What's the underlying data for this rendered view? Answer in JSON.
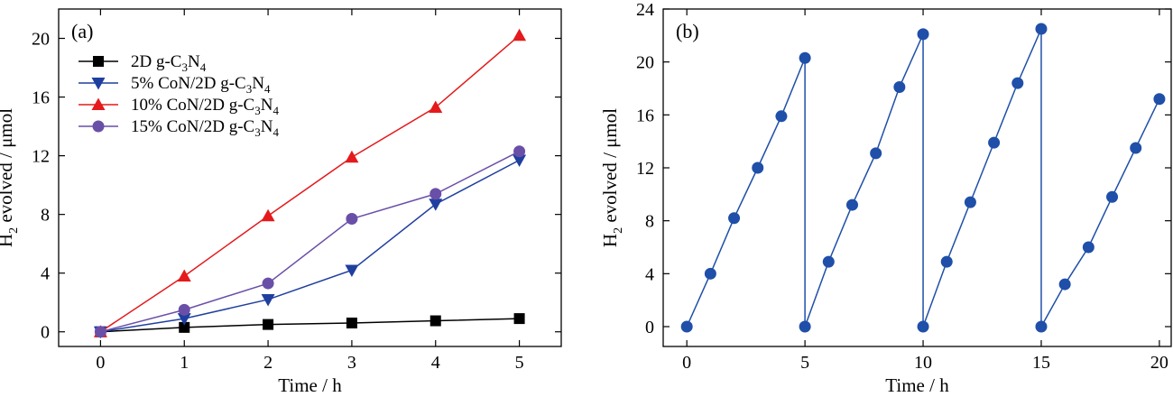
{
  "chart_data": [
    {
      "type": "line",
      "panel_label": "(a)",
      "xlabel": "Time / h",
      "ylabel": "H2 evolved / μmol",
      "ylabel_parts": {
        "before": "H",
        "sub": "2",
        "after": " evolved / μmol"
      },
      "xlim": [
        -0.5,
        5.5
      ],
      "ylim": [
        -1,
        22
      ],
      "xticks": [
        0,
        1,
        2,
        3,
        4,
        5
      ],
      "yticks": [
        0,
        4,
        8,
        12,
        16,
        20
      ],
      "legend_position": "top-left",
      "series": [
        {
          "name": "2D g-C3N4",
          "label_parts": [
            "2D g-C",
            "3",
            "N",
            "4",
            ""
          ],
          "color": "#000000",
          "marker": "square",
          "x": [
            0,
            1,
            2,
            3,
            4,
            5
          ],
          "y": [
            0,
            0.3,
            0.5,
            0.6,
            0.75,
            0.9
          ]
        },
        {
          "name": "5% CoN/2D g-C3N4",
          "label_parts": [
            "5% CoN/2D g-C",
            "3",
            "N",
            "4",
            ""
          ],
          "color": "#1f3f9f",
          "marker": "triangle-down",
          "x": [
            0,
            1,
            2,
            3,
            4,
            5
          ],
          "y": [
            0,
            0.9,
            2.2,
            4.2,
            8.7,
            11.7
          ]
        },
        {
          "name": "10% CoN/2D g-C3N4",
          "label_parts": [
            "10% CoN/2D g-C",
            "3",
            "N",
            "4",
            ""
          ],
          "color": "#e41a1c",
          "marker": "triangle-up",
          "x": [
            0,
            1,
            2,
            3,
            4,
            5
          ],
          "y": [
            0,
            3.8,
            7.9,
            11.9,
            15.3,
            20.2
          ]
        },
        {
          "name": "15% CoN/2D g-C3N4",
          "label_parts": [
            "15% CoN/2D g-C",
            "3",
            "N",
            "4",
            ""
          ],
          "color": "#6a4fa8",
          "marker": "circle",
          "x": [
            0,
            1,
            2,
            3,
            4,
            5
          ],
          "y": [
            0,
            1.5,
            3.3,
            7.7,
            9.4,
            12.3
          ]
        }
      ]
    },
    {
      "type": "line",
      "panel_label": "(b)",
      "xlabel": "Time / h",
      "ylabel": "H2 evolved / μmol",
      "ylabel_parts": {
        "before": "H",
        "sub": "2",
        "after": " evolved / μmol"
      },
      "xlim": [
        -1,
        20.5
      ],
      "ylim": [
        -1.5,
        24
      ],
      "xticks": [
        0,
        5,
        10,
        15,
        20
      ],
      "yticks": [
        0,
        4,
        8,
        12,
        16,
        20,
        24
      ],
      "series": [
        {
          "color": "#1f4fa8",
          "marker": "circle",
          "x": [
            0,
            1,
            2,
            3,
            4,
            5,
            5,
            6,
            7,
            8,
            9,
            10,
            10,
            11,
            12,
            13,
            14,
            15,
            15,
            16,
            17,
            18,
            19,
            20
          ],
          "y": [
            0,
            4.0,
            8.2,
            12.0,
            15.9,
            20.3,
            0,
            4.9,
            9.2,
            13.1,
            18.1,
            22.1,
            0,
            4.9,
            9.4,
            13.9,
            18.4,
            22.5,
            0,
            3.2,
            6.0,
            9.8,
            13.5,
            17.2
          ]
        }
      ]
    }
  ]
}
